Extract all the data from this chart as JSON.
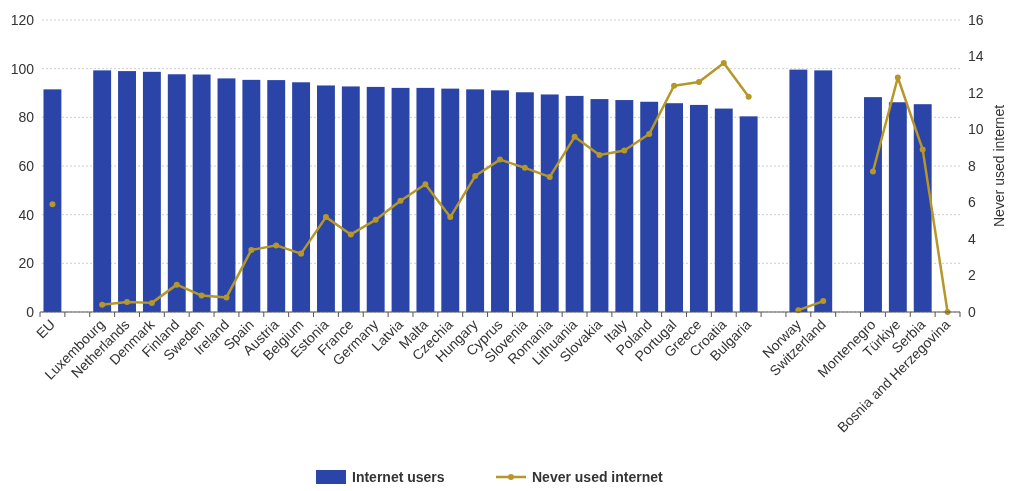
{
  "chart_data": {
    "type": "bar",
    "categories": [
      "EU",
      null,
      "Luxembourg",
      "Netherlands",
      "Denmark",
      "Finland",
      "Sweden",
      "Ireland",
      "Spain",
      "Austria",
      "Belgium",
      "Estonia",
      "France",
      "Germany",
      "Latvia",
      "Malta",
      "Czechia",
      "Hungary",
      "Cyprus",
      "Slovenia",
      "Romania",
      "Lithuania",
      "Slovakia",
      "Italy",
      "Poland",
      "Portugal",
      "Greece",
      "Croatia",
      "Bulgaria",
      null,
      "Norway",
      "Switzerland",
      null,
      "Montenegro",
      "Türkiye",
      "Serbia",
      "Bosnia and Herzegovina"
    ],
    "series": [
      {
        "name": "Internet users",
        "color": "#2a44a8",
        "values": [
          91.5,
          null,
          99.3,
          99,
          98.7,
          97.7,
          97.6,
          96,
          95.4,
          95.3,
          94.4,
          93.1,
          92.7,
          92.5,
          92.1,
          92.1,
          91.8,
          91.5,
          91.1,
          90.3,
          89.4,
          88.8,
          87.5,
          87.1,
          86.4,
          85.8,
          85.1,
          83.6,
          80.4,
          null,
          99.6,
          99.3,
          null,
          88.3,
          86.2,
          85.4,
          null
        ]
      },
      {
        "name": "Never used internet",
        "type": "line",
        "axis": "y2",
        "color": "#b5972a",
        "values": [
          5.9,
          null,
          0.4,
          0.55,
          0.5,
          1.5,
          0.9,
          0.8,
          3.4,
          3.65,
          3.2,
          5.2,
          4.25,
          5.05,
          6.1,
          7,
          5.2,
          7.45,
          8.35,
          7.9,
          7.4,
          9.6,
          8.6,
          8.85,
          9.75,
          12.4,
          12.6,
          13.65,
          11.8,
          null,
          0.1,
          0.6,
          null,
          7.7,
          12.85,
          8.9,
          0
        ]
      }
    ],
    "ylim": [
      0,
      120
    ],
    "yticks": [
      0,
      20,
      40,
      60,
      80,
      100,
      120
    ],
    "y2lim": [
      0,
      16
    ],
    "y2ticks": [
      0,
      2,
      4,
      6,
      8,
      10,
      12,
      14,
      16
    ],
    "y2label": "Never used internet",
    "grid": "y",
    "legend": "bottom",
    "marker": "circle",
    "line_style": "solid"
  }
}
